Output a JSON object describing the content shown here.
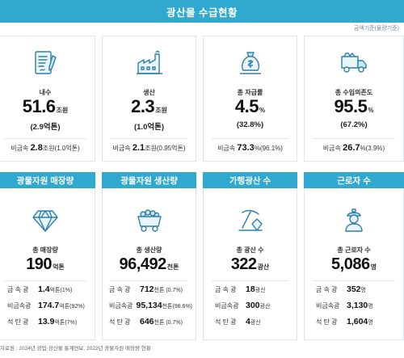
{
  "header": {
    "title": "광산물 수급현황"
  },
  "unit_note": "금액기준(물량기준)",
  "summary": [
    {
      "label": "내수",
      "value": "51.6",
      "unit": "조원",
      "sub": "(2.9억톤)",
      "foot_label": "비금속",
      "foot_value": "2.8",
      "foot_unit": "조원(1.0억톤)",
      "icon": "document-pen-icon"
    },
    {
      "label": "생산",
      "value": "2.3",
      "unit": "조원",
      "sub": "(1.0억톤)",
      "foot_label": "비금속",
      "foot_value": "2.1",
      "foot_unit": "조원(0.95억톤)",
      "icon": "factory-icon"
    },
    {
      "label": "총 자급률",
      "value": "4.5",
      "unit": "%",
      "sub": "(32.8%)",
      "foot_label": "비금속",
      "foot_value": "73.3",
      "foot_unit": "%(96.1%)",
      "icon": "money-bag-icon"
    },
    {
      "label": "총 수입의존도",
      "value": "95.5",
      "unit": "%",
      "sub": "(67.2%)",
      "foot_label": "비금속",
      "foot_value": "26.7",
      "foot_unit": "%(3.9%)",
      "icon": "dump-truck-icon"
    }
  ],
  "sections": [
    {
      "title": "광물자원 매장량",
      "label": "총 매장량",
      "value": "190",
      "unit": "억톤",
      "icon": "diamond-icon",
      "rows": [
        {
          "label": "금 속 광",
          "value": "1.4",
          "unit": "억톤(1%)"
        },
        {
          "label": "비금속광",
          "value": "174.7",
          "unit": "억톤(92%)"
        },
        {
          "label": "석 탄 광",
          "value": "13.9",
          "unit": "억톤(7%)"
        }
      ]
    },
    {
      "title": "광물자원 생산량",
      "label": "총 생산량",
      "value": "96,492",
      "unit": "천톤",
      "icon": "mine-cart-icon",
      "rows": [
        {
          "label": "금 속 광",
          "value": "712",
          "unit": "천톤 (0.7%)"
        },
        {
          "label": "비금속광",
          "value": "95,134",
          "unit": "천톤(98.6%)"
        },
        {
          "label": "석 탄 광",
          "value": "646",
          "unit": "천톤 (0.7%)"
        }
      ]
    },
    {
      "title": "가행광산 수",
      "label": "총 광산 수",
      "value": "322",
      "unit": "광산",
      "icon": "pickaxe-icon",
      "rows": [
        {
          "label": "금 속 광",
          "value": "18",
          "unit": "광산"
        },
        {
          "label": "비금속광",
          "value": "300",
          "unit": "광산"
        },
        {
          "label": "석 탄 광",
          "value": "4",
          "unit": "광산"
        }
      ]
    },
    {
      "title": "근로자 수",
      "label": "총 근로자 수",
      "value": "5,086",
      "unit": "명",
      "icon": "miner-icon",
      "rows": [
        {
          "label": "금 속 광",
          "value": "352",
          "unit": "명"
        },
        {
          "label": "비금속광",
          "value": "3,130",
          "unit": "명"
        },
        {
          "label": "석 탄 광",
          "value": "1,604",
          "unit": "명"
        }
      ]
    }
  ],
  "source": "자료원 : 2024년 광업·광산물 통계연보, 2022년 광물자원 매장량 현황"
}
